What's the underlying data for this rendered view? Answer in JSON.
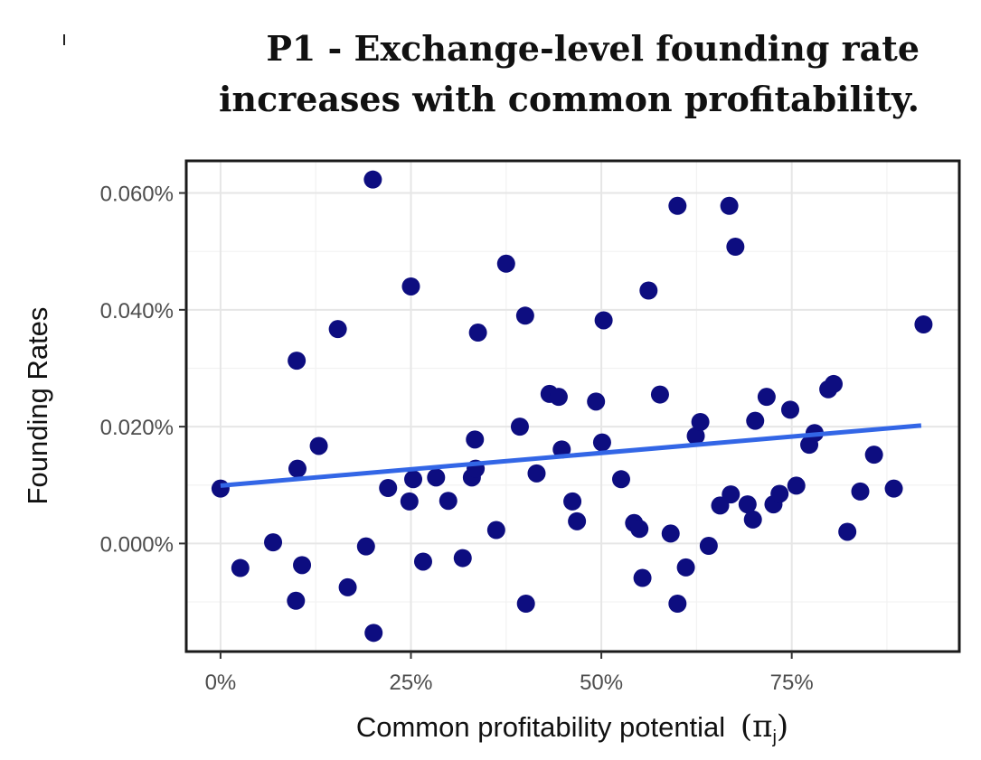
{
  "title_line1": "P1 - Exchange-level founding rate",
  "title_line2": "increases with common profitability.",
  "chart_data": {
    "type": "scatter",
    "xlabel": "Common profitability potential",
    "xlabel_symbol": "(π",
    "xlabel_subscript": "j",
    "xlabel_close": ")",
    "ylabel": "Founding Rates",
    "xlim": [
      -4.5,
      97
    ],
    "ylim": [
      -0.0185,
      0.0655
    ],
    "x_ticks": [
      0,
      25,
      50,
      75
    ],
    "x_tick_labels": [
      "0%",
      "25%",
      "50%",
      "75%"
    ],
    "y_ticks": [
      0.0,
      0.02,
      0.04,
      0.06
    ],
    "y_tick_labels": [
      "0.000%",
      "0.020%",
      "0.040%",
      "0.060%"
    ],
    "grid": true,
    "point_color": "#0d0d80",
    "trend_color": "#3366e6",
    "trend_line": {
      "x": [
        0,
        92
      ],
      "y": [
        0.0099,
        0.0202
      ]
    },
    "points": [
      [
        0,
        0.0094
      ],
      [
        2.6,
        -0.0042
      ],
      [
        6.9,
        0.0002
      ],
      [
        9.9,
        -0.0098
      ],
      [
        10,
        0.0313
      ],
      [
        10.1,
        0.0128
      ],
      [
        10.7,
        -0.0037
      ],
      [
        12.9,
        0.0167
      ],
      [
        15.4,
        0.0367
      ],
      [
        16.7,
        -0.0075
      ],
      [
        19.1,
        -0.0005
      ],
      [
        20,
        0.0623
      ],
      [
        20.1,
        -0.0153
      ],
      [
        22,
        0.0095
      ],
      [
        24.8,
        0.0072
      ],
      [
        25,
        0.044
      ],
      [
        25.3,
        0.011
      ],
      [
        26.6,
        -0.0031
      ],
      [
        28.3,
        0.0113
      ],
      [
        29.9,
        0.0073
      ],
      [
        31.8,
        -0.0025
      ],
      [
        33,
        0.0113
      ],
      [
        33.4,
        0.0178
      ],
      [
        33.5,
        0.0128
      ],
      [
        33.8,
        0.0361
      ],
      [
        36.2,
        0.0023
      ],
      [
        37.5,
        0.0479
      ],
      [
        39.3,
        0.02
      ],
      [
        40,
        0.039
      ],
      [
        40.1,
        -0.0103
      ],
      [
        41.5,
        0.012
      ],
      [
        43.2,
        0.0256
      ],
      [
        44.4,
        0.0251
      ],
      [
        44.8,
        0.0161
      ],
      [
        46.2,
        0.0072
      ],
      [
        46.8,
        0.0038
      ],
      [
        49.3,
        0.0243
      ],
      [
        50.1,
        0.0173
      ],
      [
        50.3,
        0.0382
      ],
      [
        52.6,
        0.011
      ],
      [
        54.3,
        0.0035
      ],
      [
        55,
        0.0025
      ],
      [
        55.4,
        -0.0059
      ],
      [
        56.2,
        0.0433
      ],
      [
        57.7,
        0.0255
      ],
      [
        59.1,
        0.0017
      ],
      [
        60,
        0.0578
      ],
      [
        60,
        -0.0103
      ],
      [
        61.1,
        -0.0041
      ],
      [
        62.4,
        0.0184
      ],
      [
        63,
        0.0208
      ],
      [
        64.1,
        -0.0004
      ],
      [
        65.6,
        0.0065
      ],
      [
        66.8,
        0.0578
      ],
      [
        67,
        0.0084
      ],
      [
        67.6,
        0.0508
      ],
      [
        69.2,
        0.0067
      ],
      [
        69.9,
        0.0041
      ],
      [
        70.2,
        0.021
      ],
      [
        71.7,
        0.0251
      ],
      [
        72.6,
        0.0067
      ],
      [
        73.4,
        0.0085
      ],
      [
        74.8,
        0.0229
      ],
      [
        75.6,
        0.0099
      ],
      [
        77.3,
        0.0169
      ],
      [
        78,
        0.0189
      ],
      [
        79.8,
        0.0264
      ],
      [
        80.5,
        0.0273
      ],
      [
        82.3,
        0.002
      ],
      [
        84,
        0.0089
      ],
      [
        85.8,
        0.0152
      ],
      [
        88.4,
        0.0094
      ],
      [
        92.3,
        0.0375
      ]
    ]
  }
}
